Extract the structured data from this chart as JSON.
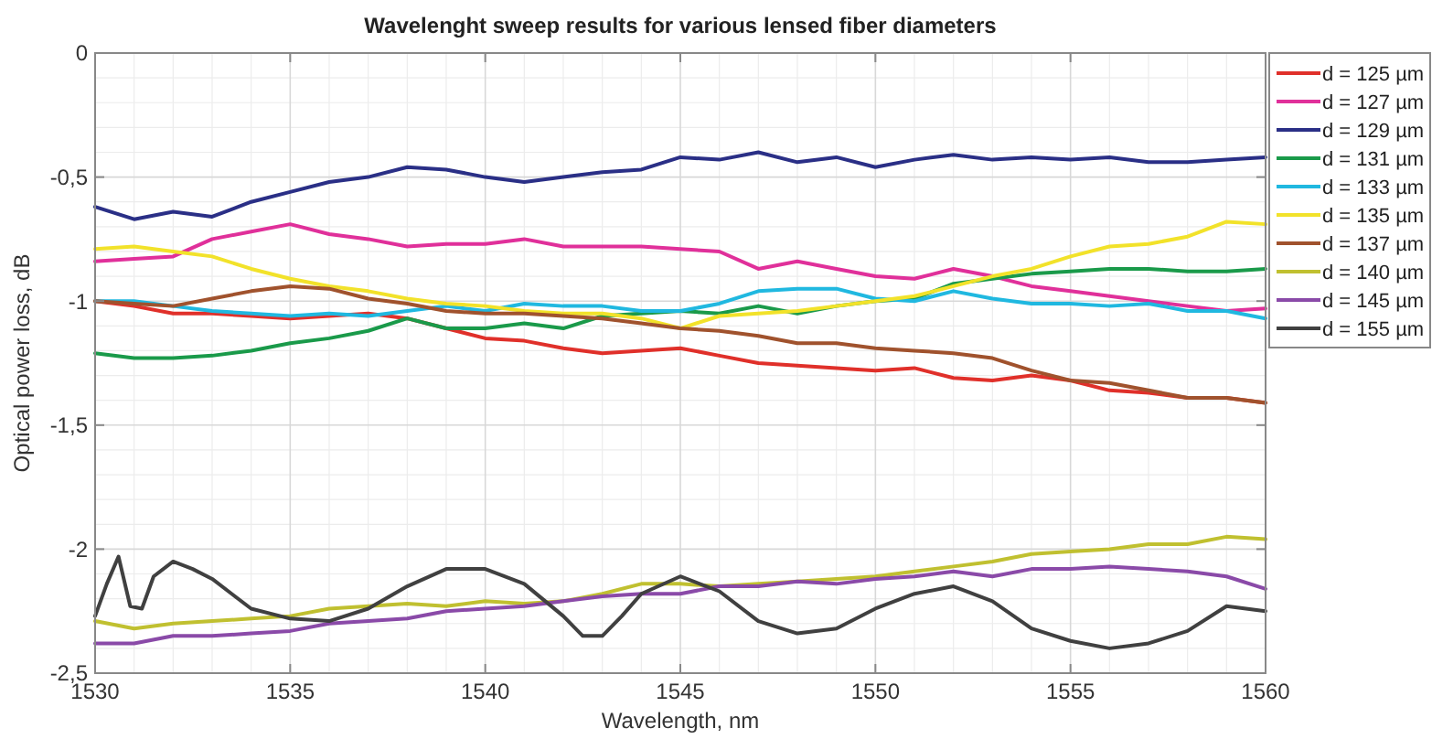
{
  "chart_data": {
    "type": "line",
    "title": "Wavelenght sweep results for various lensed fiber diameters",
    "xlabel": "Wavelength, nm",
    "ylabel": "Optical power loss, dB",
    "x": [
      1530,
      1531,
      1532,
      1533,
      1534,
      1535,
      1536,
      1537,
      1538,
      1539,
      1540,
      1541,
      1542,
      1543,
      1544,
      1545,
      1546,
      1547,
      1548,
      1549,
      1550,
      1551,
      1552,
      1553,
      1554,
      1555,
      1556,
      1557,
      1558,
      1559,
      1560
    ],
    "xlim": [
      1530,
      1560
    ],
    "xticks": [
      1530,
      1535,
      1540,
      1545,
      1550,
      1555,
      1560
    ],
    "ylim": [
      -2.5,
      0
    ],
    "yticks": [
      {
        "value": -2.5,
        "label": "-2,5"
      },
      {
        "value": -2,
        "label": "-2"
      },
      {
        "value": -1.5,
        "label": "-1,5"
      },
      {
        "value": -1,
        "label": "-1"
      },
      {
        "value": -0.5,
        "label": "-0,5"
      },
      {
        "value": 0,
        "label": "0"
      }
    ],
    "grid": true,
    "legend": "right",
    "line_style": "solid",
    "series": [
      {
        "name": "d = 125 µm",
        "color": "#e0302a",
        "values": [
          -1.0,
          -1.02,
          -1.05,
          -1.05,
          -1.06,
          -1.07,
          -1.06,
          -1.05,
          -1.07,
          -1.11,
          -1.15,
          -1.16,
          -1.19,
          -1.21,
          -1.2,
          -1.19,
          -1.22,
          -1.25,
          -1.26,
          -1.27,
          -1.28,
          -1.27,
          -1.31,
          -1.32,
          -1.3,
          -1.32,
          -1.36,
          -1.37,
          -1.39,
          -1.39,
          -1.41
        ]
      },
      {
        "name": "d = 127 µm",
        "color": "#e0309a",
        "values": [
          -0.84,
          -0.83,
          -0.82,
          -0.75,
          -0.72,
          -0.69,
          -0.73,
          -0.75,
          -0.78,
          -0.77,
          -0.77,
          -0.75,
          -0.78,
          -0.78,
          -0.78,
          -0.79,
          -0.8,
          -0.87,
          -0.84,
          -0.87,
          -0.9,
          -0.91,
          -0.87,
          -0.9,
          -0.94,
          -0.96,
          -0.98,
          -1.0,
          -1.02,
          -1.04,
          -1.03
        ]
      },
      {
        "name": "d = 129 µm",
        "color": "#2a2f86",
        "values": [
          -0.62,
          -0.67,
          -0.64,
          -0.66,
          -0.6,
          -0.56,
          -0.52,
          -0.5,
          -0.46,
          -0.47,
          -0.5,
          -0.52,
          -0.5,
          -0.48,
          -0.47,
          -0.42,
          -0.43,
          -0.4,
          -0.44,
          -0.42,
          -0.46,
          -0.43,
          -0.41,
          -0.43,
          -0.42,
          -0.43,
          -0.42,
          -0.44,
          -0.44,
          -0.43,
          -0.42
        ]
      },
      {
        "name": "d = 131 µm",
        "color": "#1a9a4a",
        "values": [
          -1.21,
          -1.23,
          -1.23,
          -1.22,
          -1.2,
          -1.17,
          -1.15,
          -1.12,
          -1.07,
          -1.11,
          -1.11,
          -1.09,
          -1.11,
          -1.06,
          -1.05,
          -1.04,
          -1.05,
          -1.02,
          -1.05,
          -1.02,
          -1.0,
          -0.99,
          -0.93,
          -0.91,
          -0.89,
          -0.88,
          -0.87,
          -0.87,
          -0.88,
          -0.88,
          -0.87
        ]
      },
      {
        "name": "d = 133 µm",
        "color": "#20b8e0",
        "values": [
          -1.0,
          -1.0,
          -1.02,
          -1.04,
          -1.05,
          -1.06,
          -1.05,
          -1.06,
          -1.04,
          -1.02,
          -1.04,
          -1.01,
          -1.02,
          -1.02,
          -1.04,
          -1.04,
          -1.01,
          -0.96,
          -0.95,
          -0.95,
          -0.99,
          -1.0,
          -0.96,
          -0.99,
          -1.01,
          -1.01,
          -1.02,
          -1.01,
          -1.04,
          -1.04,
          -1.07
        ]
      },
      {
        "name": "d = 135 µm",
        "color": "#f2e22a",
        "values": [
          -0.79,
          -0.78,
          -0.8,
          -0.82,
          -0.87,
          -0.91,
          -0.94,
          -0.96,
          -0.99,
          -1.01,
          -1.02,
          -1.04,
          -1.05,
          -1.05,
          -1.07,
          -1.11,
          -1.06,
          -1.05,
          -1.04,
          -1.02,
          -1.0,
          -0.98,
          -0.94,
          -0.9,
          -0.87,
          -0.82,
          -0.78,
          -0.77,
          -0.74,
          -0.68,
          -0.69
        ]
      },
      {
        "name": "d = 137 µm",
        "color": "#a0522d",
        "values": [
          -1.0,
          -1.01,
          -1.02,
          -0.99,
          -0.96,
          -0.94,
          -0.95,
          -0.99,
          -1.01,
          -1.04,
          -1.05,
          -1.05,
          -1.06,
          -1.07,
          -1.09,
          -1.11,
          -1.12,
          -1.14,
          -1.17,
          -1.17,
          -1.19,
          -1.2,
          -1.21,
          -1.23,
          -1.28,
          -1.32,
          -1.33,
          -1.36,
          -1.39,
          -1.39,
          -1.41
        ]
      },
      {
        "name": "d = 140 µm",
        "color": "#c0c030",
        "values": [
          -2.29,
          -2.32,
          -2.3,
          -2.29,
          -2.28,
          -2.27,
          -2.24,
          -2.23,
          -2.22,
          -2.23,
          -2.21,
          -2.22,
          -2.21,
          -2.18,
          -2.14,
          -2.14,
          -2.15,
          -2.14,
          -2.13,
          -2.12,
          -2.11,
          -2.09,
          -2.07,
          -2.05,
          -2.02,
          -2.01,
          -2.0,
          -1.98,
          -1.98,
          -1.95,
          -1.96
        ]
      },
      {
        "name": "d = 145 µm",
        "color": "#8a4aa8",
        "values": [
          -2.38,
          -2.38,
          -2.35,
          -2.35,
          -2.34,
          -2.33,
          -2.3,
          -2.29,
          -2.28,
          -2.25,
          -2.24,
          -2.23,
          -2.21,
          -2.19,
          -2.18,
          -2.18,
          -2.15,
          -2.15,
          -2.13,
          -2.14,
          -2.12,
          -2.11,
          -2.09,
          -2.11,
          -2.08,
          -2.08,
          -2.07,
          -2.08,
          -2.09,
          -2.11,
          -2.16
        ]
      },
      {
        "name": "d = 155 µm",
        "color": "#404040",
        "x": [
          1530,
          1530.3,
          1530.6,
          1530.9,
          1531.2,
          1531.5,
          1532,
          1532.5,
          1533,
          1533.5,
          1534,
          1535,
          1536,
          1537,
          1538,
          1539,
          1540,
          1541,
          1542,
          1542.5,
          1543,
          1543.5,
          1544,
          1545,
          1546,
          1547,
          1548,
          1549,
          1550,
          1551,
          1552,
          1553,
          1554,
          1555,
          1556,
          1557,
          1558,
          1559,
          1560
        ],
        "values": [
          -2.27,
          -2.14,
          -2.03,
          -2.23,
          -2.24,
          -2.11,
          -2.05,
          -2.08,
          -2.12,
          -2.18,
          -2.24,
          -2.28,
          -2.29,
          -2.24,
          -2.15,
          -2.08,
          -2.08,
          -2.14,
          -2.27,
          -2.35,
          -2.35,
          -2.27,
          -2.18,
          -2.11,
          -2.17,
          -2.29,
          -2.34,
          -2.32,
          -2.24,
          -2.18,
          -2.15,
          -2.21,
          -2.32,
          -2.37,
          -2.4,
          -2.38,
          -2.33,
          -2.23,
          -2.25
        ]
      }
    ]
  }
}
